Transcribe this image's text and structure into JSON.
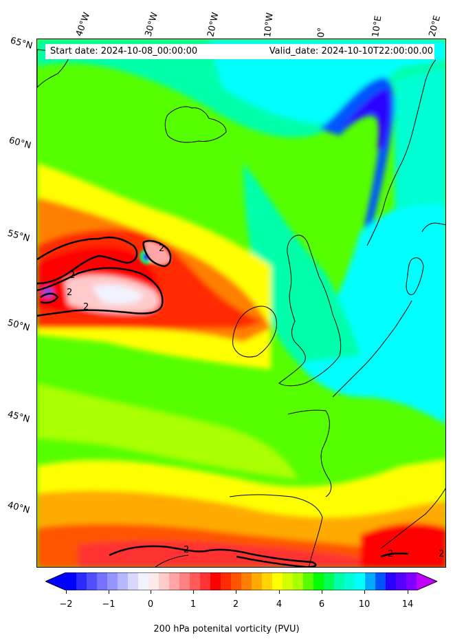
{
  "map": {
    "start_date": "Start date: 2024-10-08_00:00:00",
    "valid_date": "Valid_date: 2024-10-10T22:00:00.00",
    "lon_labels": [
      "40°W",
      "30°W",
      "20°W",
      "10°W",
      "0°",
      "10°E",
      "20°E"
    ],
    "lat_labels": [
      "65°N",
      "60°N",
      "55°N",
      "50°N",
      "45°N",
      "40°N"
    ],
    "contour_labels": [
      "2",
      "2",
      "2",
      "2",
      "2",
      "2",
      "2"
    ],
    "variable": "200 hPa potential vorticity",
    "units": "PVU",
    "contour_level": 2
  },
  "colorbar": {
    "label": "200 hPa potenital vorticity (PVU)",
    "ticks": [
      "−2",
      "−1",
      "0",
      "1",
      "2",
      "4",
      "6",
      "10",
      "14"
    ],
    "colors": [
      "#0000ff",
      "#2b2bff",
      "#5050ff",
      "#7373ff",
      "#9595ff",
      "#b7b7ff",
      "#d8d8ff",
      "#f2f2ff",
      "#ffeaea",
      "#ffcaca",
      "#ffa5a5",
      "#ff8080",
      "#ff5a5a",
      "#ff3333",
      "#ff0000",
      "#ff2a00",
      "#ff5500",
      "#ff8000",
      "#ffaa00",
      "#ffd400",
      "#ffff00",
      "#d4ff00",
      "#aaff00",
      "#55ff00",
      "#00ff00",
      "#00ff55",
      "#00ffaa",
      "#00ffd4",
      "#00ffff",
      "#00aaff",
      "#0055ff",
      "#2a00ff",
      "#5500ff",
      "#8000ff"
    ],
    "extend_low": "#0000ff",
    "extend_high": "#bf00ff"
  }
}
